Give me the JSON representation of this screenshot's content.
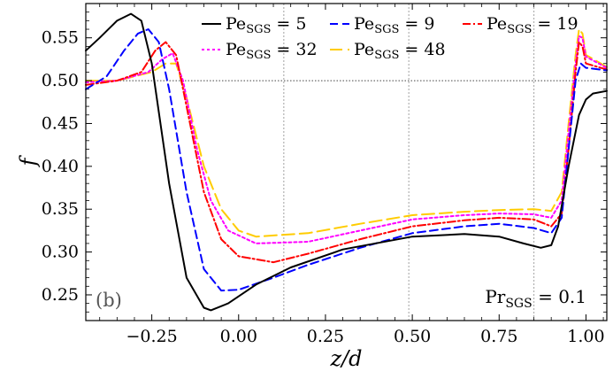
{
  "chart_data": {
    "type": "line",
    "xlabel": "z/d",
    "ylabel": "f",
    "xlim": [
      -0.44,
      1.06
    ],
    "ylim": [
      0.22,
      0.59
    ],
    "xticks": [
      -0.25,
      0.0,
      0.25,
      0.5,
      0.75,
      1.0
    ],
    "xtick_labels": [
      "−0.25",
      "0.00",
      "0.25",
      "0.50",
      "0.75",
      "1.00"
    ],
    "yticks": [
      0.25,
      0.3,
      0.35,
      0.4,
      0.45,
      0.5,
      0.55
    ],
    "ytick_labels": [
      "0.25",
      "0.30",
      "0.35",
      "0.40",
      "0.45",
      "0.50",
      "0.55"
    ],
    "reference_hline": 0.5,
    "reference_vlines": [
      0.13,
      0.49,
      0.85
    ],
    "panel_label": "(b)",
    "annotation": "Pr",
    "annotation_sub": "SGS",
    "annotation_value": " = 0.1",
    "legend_position": "top",
    "series": [
      {
        "name": "Pe",
        "sub": "SGS",
        "value_text": " = 5",
        "color": "#000000",
        "dash": "",
        "z": [
          -0.44,
          -0.4,
          -0.35,
          -0.31,
          -0.28,
          -0.25,
          -0.2,
          -0.15,
          -0.1,
          -0.08,
          -0.03,
          0.05,
          0.15,
          0.3,
          0.5,
          0.65,
          0.75,
          0.82,
          0.87,
          0.9,
          0.92,
          0.95,
          0.98,
          1.0,
          1.02,
          1.06
        ],
        "f": [
          0.535,
          0.55,
          0.57,
          0.578,
          0.57,
          0.52,
          0.38,
          0.27,
          0.235,
          0.232,
          0.24,
          0.262,
          0.282,
          0.303,
          0.318,
          0.321,
          0.318,
          0.31,
          0.305,
          0.308,
          0.33,
          0.4,
          0.46,
          0.478,
          0.485,
          0.488
        ]
      },
      {
        "name": "Pe",
        "sub": "SGS",
        "value_text": " = 9",
        "color": "#0000ff",
        "dash": "9,5",
        "z": [
          -0.44,
          -0.38,
          -0.33,
          -0.29,
          -0.26,
          -0.23,
          -0.2,
          -0.15,
          -0.1,
          -0.05,
          0.0,
          0.1,
          0.2,
          0.35,
          0.5,
          0.65,
          0.75,
          0.85,
          0.9,
          0.93,
          0.95,
          0.97,
          0.985,
          1.0,
          1.06
        ],
        "f": [
          0.49,
          0.505,
          0.535,
          0.555,
          0.56,
          0.545,
          0.49,
          0.37,
          0.28,
          0.255,
          0.256,
          0.27,
          0.285,
          0.305,
          0.322,
          0.33,
          0.333,
          0.328,
          0.322,
          0.34,
          0.42,
          0.5,
          0.52,
          0.515,
          0.512
        ]
      },
      {
        "name": "Pe",
        "sub": "SGS",
        "value_text": " = 19",
        "color": "#ff0000",
        "dash": "9,3,2,3",
        "z": [
          -0.44,
          -0.35,
          -0.28,
          -0.24,
          -0.21,
          -0.18,
          -0.15,
          -0.1,
          -0.05,
          0.0,
          0.1,
          0.2,
          0.35,
          0.5,
          0.65,
          0.75,
          0.85,
          0.9,
          0.93,
          0.95,
          0.97,
          0.98,
          0.99,
          1.0,
          1.06
        ],
        "f": [
          0.495,
          0.5,
          0.51,
          0.535,
          0.545,
          0.53,
          0.47,
          0.37,
          0.315,
          0.295,
          0.288,
          0.298,
          0.315,
          0.33,
          0.337,
          0.34,
          0.338,
          0.33,
          0.345,
          0.42,
          0.51,
          0.545,
          0.54,
          0.52,
          0.513
        ]
      },
      {
        "name": "Pe",
        "sub": "SGS",
        "value_text": " = 32",
        "color": "#ff00ff",
        "dash": "3,3",
        "z": [
          -0.44,
          -0.35,
          -0.26,
          -0.22,
          -0.19,
          -0.16,
          -0.12,
          -0.08,
          -0.03,
          0.05,
          0.2,
          0.35,
          0.5,
          0.65,
          0.75,
          0.85,
          0.9,
          0.93,
          0.95,
          0.97,
          0.98,
          0.99,
          1.0,
          1.06
        ],
        "f": [
          0.498,
          0.5,
          0.51,
          0.525,
          0.532,
          0.5,
          0.42,
          0.36,
          0.325,
          0.31,
          0.312,
          0.325,
          0.338,
          0.343,
          0.345,
          0.344,
          0.34,
          0.36,
          0.44,
          0.52,
          0.552,
          0.55,
          0.528,
          0.515
        ]
      },
      {
        "name": "Pe",
        "sub": "SGS",
        "value_text": " = 48",
        "color": "#ffcc00",
        "dash": "14,6",
        "z": [
          -0.44,
          -0.35,
          -0.25,
          -0.21,
          -0.18,
          -0.15,
          -0.1,
          -0.05,
          0.0,
          0.05,
          0.2,
          0.35,
          0.5,
          0.65,
          0.75,
          0.85,
          0.9,
          0.93,
          0.95,
          0.97,
          0.98,
          0.99,
          1.0,
          1.06
        ],
        "f": [
          0.5,
          0.5,
          0.51,
          0.52,
          0.52,
          0.48,
          0.4,
          0.35,
          0.325,
          0.318,
          0.322,
          0.333,
          0.343,
          0.347,
          0.349,
          0.35,
          0.348,
          0.37,
          0.45,
          0.53,
          0.56,
          0.555,
          0.53,
          0.516
        ]
      }
    ]
  }
}
